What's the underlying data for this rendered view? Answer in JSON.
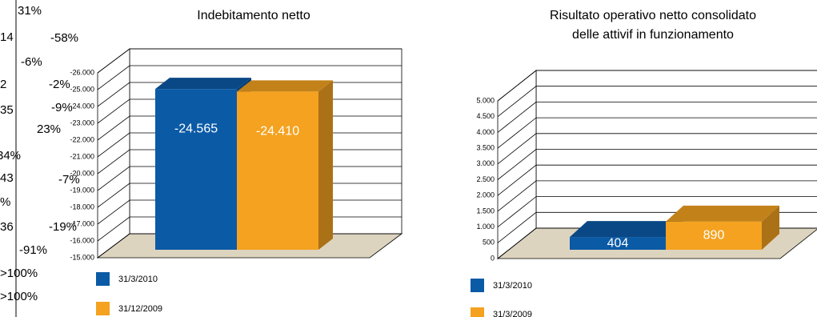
{
  "fragments": [
    "31%",
    "14",
    "-58%",
    "-6%",
    "2",
    "-2%",
    "-9%",
    "35",
    "23%",
    "34%",
    "43",
    "-7%",
    "%",
    "36",
    "-19%",
    "-91%",
    ">100%",
    ">100%"
  ],
  "chart_data": [
    {
      "type": "bar",
      "title": [
        "Indebitamento netto"
      ],
      "categories": [
        "31/3/2010",
        "31/12/2009"
      ],
      "values": [
        -24565,
        -24410
      ],
      "value_labels": [
        "-24.565",
        "-24.410"
      ],
      "colors": [
        "#0b5aa6",
        "#f4a21f"
      ],
      "ylim": [
        -15000,
        -26000
      ],
      "yticks": [
        {
          "value": -15000,
          "label": "-15.000"
        },
        {
          "value": -16000,
          "label": "-16.000"
        },
        {
          "value": -17000,
          "label": "-17.000"
        },
        {
          "value": -18000,
          "label": "-18.000"
        },
        {
          "value": -19000,
          "label": "-19.000"
        },
        {
          "value": -20000,
          "label": "-20.000"
        },
        {
          "value": -21000,
          "label": "-21.000"
        },
        {
          "value": -22000,
          "label": "-22.000"
        },
        {
          "value": -23000,
          "label": "-23.000"
        },
        {
          "value": -24000,
          "label": "-24.000"
        },
        {
          "value": -25000,
          "label": "-25.000"
        },
        {
          "value": -26000,
          "label": "-26.000"
        }
      ],
      "grid": true
    },
    {
      "type": "bar",
      "title": [
        "Risultato operativo netto consolidato",
        "delle attivif  in funzionamento"
      ],
      "categories": [
        "31/3/2010",
        "31/3/2009"
      ],
      "values": [
        404,
        890
      ],
      "colors": [
        "#0b5aa6",
        "#f4a21f"
      ],
      "ylim": [
        0,
        5000
      ],
      "yticks": [
        0,
        500,
        {
          "value": 1000,
          "label": "1.000"
        },
        {
          "value": 1500,
          "label": "1.500"
        },
        {
          "value": 2000,
          "label": "2.000"
        },
        {
          "value": 2500,
          "label": "2.500"
        },
        {
          "value": 3000,
          "label": "3.000"
        },
        {
          "value": 3500,
          "label": "3.500"
        },
        {
          "value": 4000,
          "label": "4.000"
        },
        {
          "value": 4500,
          "label": "4.500"
        },
        {
          "value": 5000,
          "label": "5.000"
        }
      ],
      "grid": true
    }
  ]
}
